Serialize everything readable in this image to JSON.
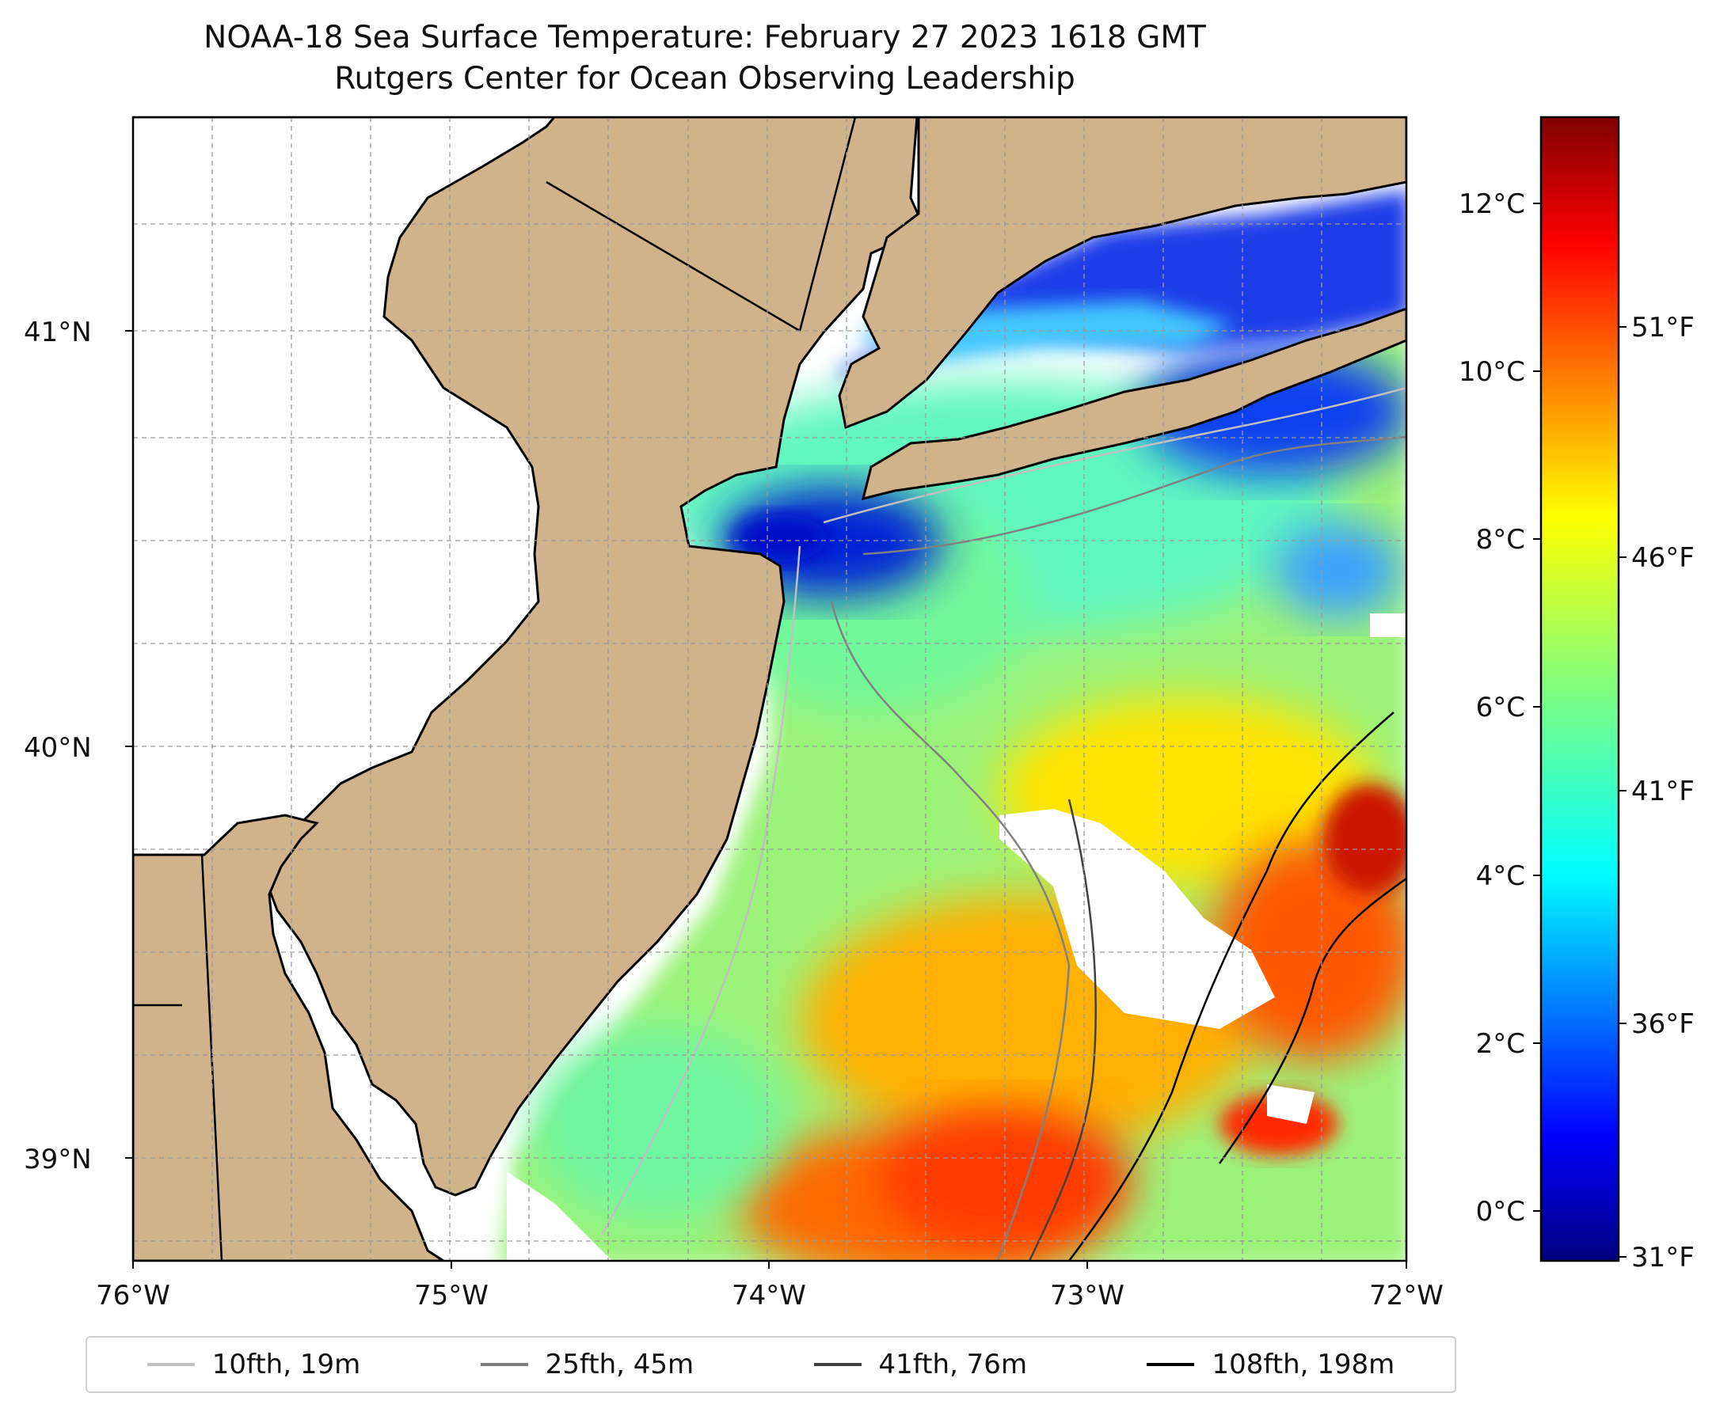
{
  "title": {
    "line1": "NOAA-18 Sea Surface Temperature: February 27 2023 1618 GMT",
    "line2": "Rutgers Center for Ocean Observing Leadership"
  },
  "map": {
    "lon_range": [
      -76.0,
      -72.0
    ],
    "lat_range": [
      38.7,
      41.52
    ],
    "x_ticks": [
      "76°W",
      "75°W",
      "74°W",
      "73°W",
      "72°W"
    ],
    "y_ticks": [
      "39°N",
      "40°N",
      "41°N"
    ],
    "land_color": "#d0b28b",
    "missing_data_color": "#ffffff",
    "gridlines": true
  },
  "colorbar": {
    "colormap": "jet",
    "celsius_ticks": [
      "0°C",
      "2°C",
      "4°C",
      "6°C",
      "8°C",
      "10°C",
      "12°C"
    ],
    "fahrenheit_ticks": [
      "31°F",
      "36°F",
      "41°F",
      "46°F",
      "51°F"
    ]
  },
  "legend": [
    {
      "label": "10fth, 19m",
      "color": "#c0c0c0"
    },
    {
      "label": "25fth, 45m",
      "color": "#808080"
    },
    {
      "label": "41fth, 76m",
      "color": "#404040"
    },
    {
      "label": "108fth, 198m",
      "color": "#000000"
    }
  ]
}
